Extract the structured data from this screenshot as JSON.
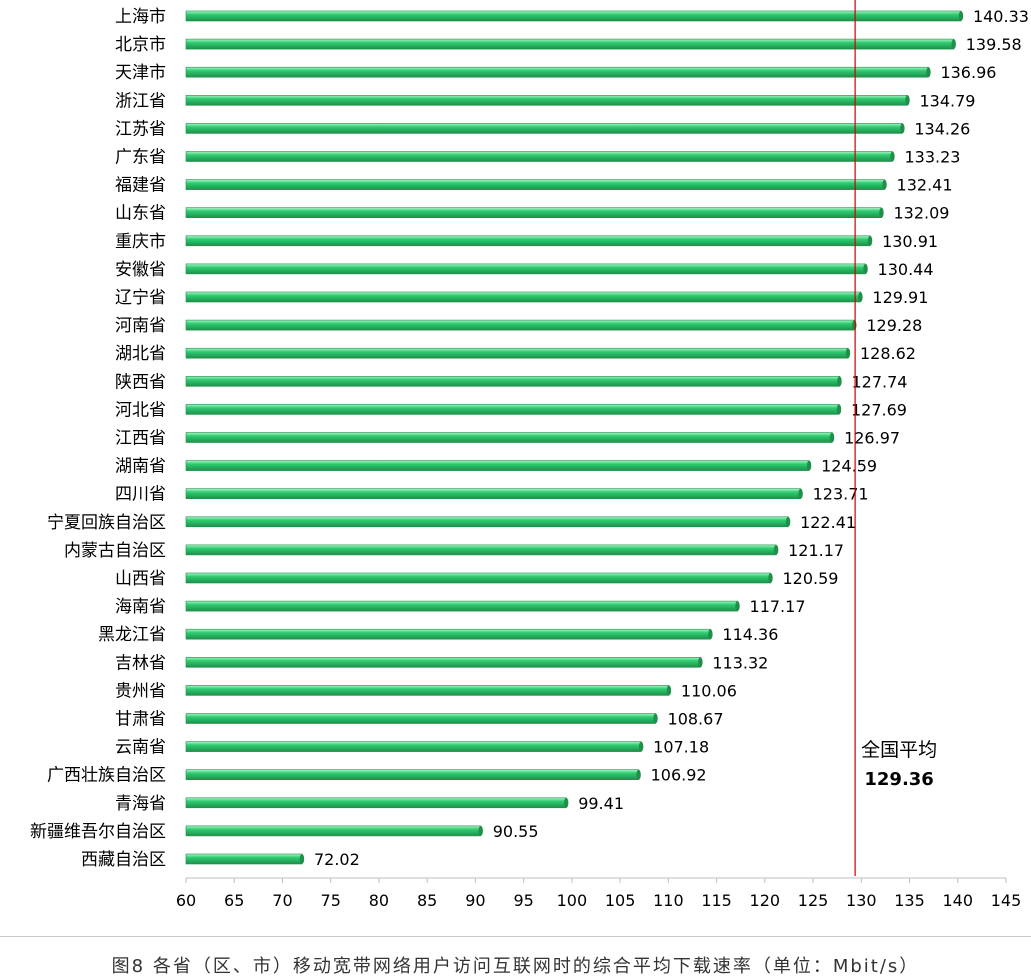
{
  "chart_data": {
    "type": "bar",
    "orientation": "horizontal",
    "title": "",
    "categories": [
      "上海市",
      "北京市",
      "天津市",
      "浙江省",
      "江苏省",
      "广东省",
      "福建省",
      "山东省",
      "重庆市",
      "安徽省",
      "辽宁省",
      "河南省",
      "湖北省",
      "陕西省",
      "河北省",
      "江西省",
      "湖南省",
      "四川省",
      "宁夏回族自治区",
      "内蒙古自治区",
      "山西省",
      "海南省",
      "黑龙江省",
      "吉林省",
      "贵州省",
      "甘肃省",
      "云南省",
      "广西壮族自治区",
      "青海省",
      "新疆维吾尔自治区",
      "西藏自治区"
    ],
    "values": [
      140.33,
      139.58,
      136.96,
      134.79,
      134.26,
      133.23,
      132.41,
      132.09,
      130.91,
      130.44,
      129.91,
      129.28,
      128.62,
      127.74,
      127.69,
      126.97,
      124.59,
      123.71,
      122.41,
      121.17,
      120.59,
      117.17,
      114.36,
      113.32,
      110.06,
      108.67,
      107.18,
      106.92,
      99.41,
      90.55,
      72.02
    ],
    "value_labels": [
      "140.33",
      "139.58",
      "136.96",
      "134.79",
      "134.26",
      "133.23",
      "132.41",
      "132.09",
      "130.91",
      "130.44",
      "129.91",
      "129.28",
      "128.62",
      "127.74",
      "127.69",
      "126.97",
      "124.59",
      "123.71",
      "122.41",
      "121.17",
      "120.59",
      "117.17",
      "114.36",
      "113.32",
      "110.06",
      "108.67",
      "107.18",
      "106.92",
      "99.41",
      "90.55",
      "72.02"
    ],
    "xlim": [
      60,
      145
    ],
    "x_ticks": [
      "60",
      "65",
      "70",
      "75",
      "80",
      "85",
      "90",
      "95",
      "100",
      "105",
      "110",
      "115",
      "120",
      "125",
      "130",
      "135",
      "140",
      "145"
    ],
    "grid": false,
    "bar_color": "#2ecc71",
    "bar_dark": "#1f8f4a",
    "bar_light": "#a9f5c4",
    "reference_line": {
      "value": 129.36,
      "label": "全国平均",
      "value_label": "129.36",
      "color": "#cc0000"
    }
  },
  "caption": "图8 各省（区、市）移动宽带网络用户访问互联网时的综合平均下载速率（单位：Mbit/s）"
}
